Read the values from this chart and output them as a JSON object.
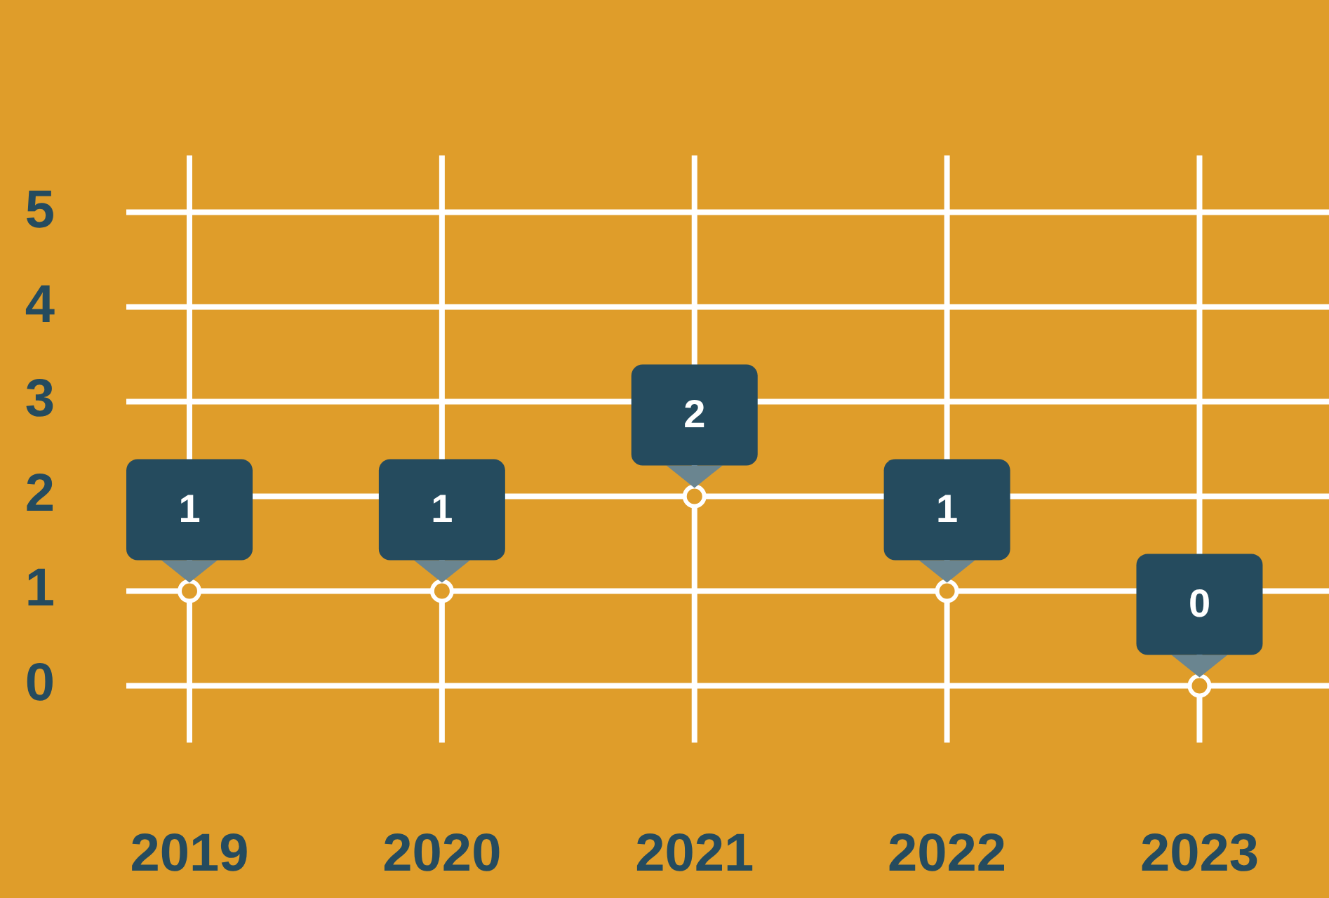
{
  "chart_data": {
    "type": "scatter",
    "categories": [
      "2019",
      "2020",
      "2021",
      "2022",
      "2023"
    ],
    "series": [
      {
        "color": "#ffffff",
        "values": [
          1,
          1,
          2,
          1,
          0
        ]
      }
    ],
    "ylim": [
      -0.6,
      5.6
    ],
    "yticks": [
      0,
      1,
      2,
      3,
      4,
      5
    ],
    "grid": true,
    "legend": false,
    "marker": "circle",
    "data_labels": true
  }
}
